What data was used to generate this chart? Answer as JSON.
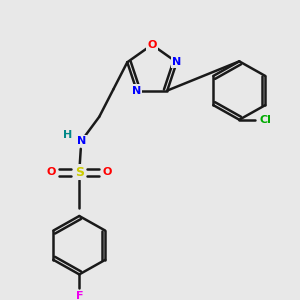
{
  "bg_color": "#e8e8e8",
  "bond_color": "#1a1a1a",
  "colors": {
    "O": "#ff0000",
    "N": "#0000ff",
    "S": "#cccc00",
    "F": "#ee00ee",
    "Cl": "#00aa00",
    "H": "#008888",
    "C": "#1a1a1a"
  },
  "lw": 1.8
}
